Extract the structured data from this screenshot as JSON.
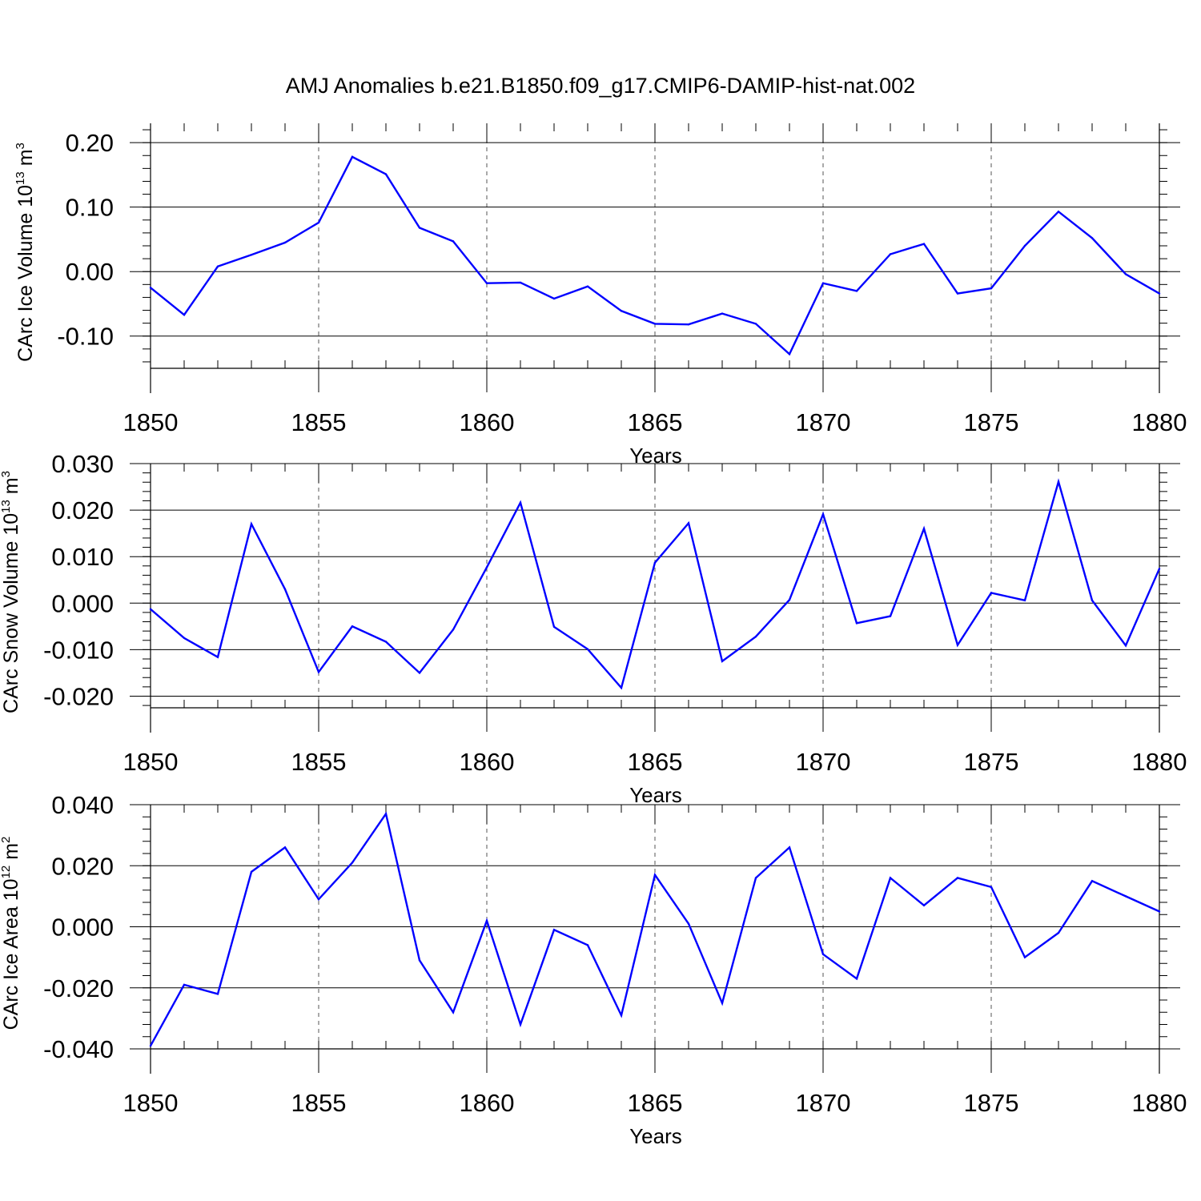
{
  "figure": {
    "title": "AMJ Anomalies b.e21.B1850.f09_g17.CMIP6-DAMIP-hist-nat.002",
    "line_color": "#0000ff"
  },
  "chart_data": [
    {
      "type": "line",
      "ylabel_main": "CArc Ice Volume 10",
      "ylabel_exp": "13",
      "ylabel_unit": " m",
      "ylabel_unit_exp": "3",
      "xlabel": "Years",
      "xlim": [
        1850,
        1880
      ],
      "ylim": [
        -0.15,
        0.23
      ],
      "y_ticks": [
        -0.1,
        0.0,
        0.1,
        0.2
      ],
      "y_tick_labels": [
        "-0.10",
        "0.00",
        "0.10",
        "0.20"
      ],
      "y_minor_step": 0.02,
      "x_ticks": [
        1850,
        1855,
        1860,
        1865,
        1870,
        1875,
        1880
      ],
      "x_tick_labels": [
        "1850",
        "1855",
        "1860",
        "1865",
        "1870",
        "1875",
        "1880"
      ],
      "grid": "vertical dashed at major x ticks",
      "x": [
        1850,
        1851,
        1852,
        1853,
        1854,
        1855,
        1856,
        1857,
        1858,
        1859,
        1860,
        1861,
        1862,
        1863,
        1864,
        1865,
        1866,
        1867,
        1868,
        1869,
        1870,
        1871,
        1872,
        1873,
        1874,
        1875,
        1876,
        1877,
        1878,
        1879,
        1880
      ],
      "series": [
        {
          "values": [
            -0.025,
            -0.067,
            0.008,
            0.026,
            0.045,
            0.076,
            0.178,
            0.151,
            0.068,
            0.047,
            -0.018,
            -0.017,
            -0.042,
            -0.023,
            -0.061,
            -0.081,
            -0.082,
            -0.065,
            -0.081,
            -0.128,
            -0.018,
            -0.03,
            0.027,
            0.043,
            -0.034,
            -0.026,
            0.04,
            0.093,
            0.052,
            -0.004,
            -0.034
          ]
        }
      ]
    },
    {
      "type": "line",
      "ylabel_main": "CArc Snow Volume 10",
      "ylabel_exp": "13",
      "ylabel_unit": " m",
      "ylabel_unit_exp": "3",
      "xlabel": "Years",
      "xlim": [
        1850,
        1880
      ],
      "ylim": [
        -0.0225,
        0.03
      ],
      "y_ticks": [
        -0.02,
        -0.01,
        0.0,
        0.01,
        0.02,
        0.03
      ],
      "y_tick_labels": [
        "-0.020",
        "-0.010",
        "0.000",
        "0.010",
        "0.020",
        "0.030"
      ],
      "y_minor_step": 0.002,
      "x_ticks": [
        1850,
        1855,
        1860,
        1865,
        1870,
        1875,
        1880
      ],
      "x_tick_labels": [
        "1850",
        "1855",
        "1860",
        "1865",
        "1870",
        "1875",
        "1880"
      ],
      "grid": "vertical dashed at major x ticks",
      "x": [
        1850,
        1851,
        1852,
        1853,
        1854,
        1855,
        1856,
        1857,
        1858,
        1859,
        1860,
        1861,
        1862,
        1863,
        1864,
        1865,
        1866,
        1867,
        1868,
        1869,
        1870,
        1871,
        1872,
        1873,
        1874,
        1875,
        1876,
        1877,
        1878,
        1879,
        1880
      ],
      "series": [
        {
          "values": [
            -0.0013,
            -0.0075,
            -0.0116,
            0.017,
            0.003,
            -0.0148,
            -0.005,
            -0.0083,
            -0.015,
            -0.0057,
            0.0077,
            0.0216,
            -0.0051,
            -0.0099,
            -0.0182,
            0.0087,
            0.0172,
            -0.0125,
            -0.0072,
            0.0007,
            0.0191,
            -0.0043,
            -0.0028,
            0.016,
            -0.009,
            0.0022,
            0.0006,
            0.0261,
            0.0006,
            -0.0091,
            0.0074
          ]
        }
      ]
    },
    {
      "type": "line",
      "ylabel_main": "CArc Ice Area 10",
      "ylabel_exp": "12",
      "ylabel_unit": " m",
      "ylabel_unit_exp": "2",
      "xlabel": "Years",
      "xlim": [
        1850,
        1880
      ],
      "ylim": [
        -0.04,
        0.04
      ],
      "y_ticks": [
        -0.04,
        -0.02,
        0.0,
        0.02,
        0.04
      ],
      "y_tick_labels": [
        "-0.040",
        "-0.020",
        "0.000",
        "0.020",
        "0.040"
      ],
      "y_minor_step": 0.004,
      "x_ticks": [
        1850,
        1855,
        1860,
        1865,
        1870,
        1875,
        1880
      ],
      "x_tick_labels": [
        "1850",
        "1855",
        "1860",
        "1865",
        "1870",
        "1875",
        "1880"
      ],
      "grid": "vertical dashed at major x ticks",
      "x": [
        1850,
        1851,
        1852,
        1853,
        1854,
        1855,
        1856,
        1857,
        1858,
        1859,
        1860,
        1861,
        1862,
        1863,
        1864,
        1865,
        1866,
        1867,
        1868,
        1869,
        1870,
        1871,
        1872,
        1873,
        1874,
        1875,
        1876,
        1877,
        1878,
        1879,
        1880
      ],
      "series": [
        {
          "values": [
            -0.039,
            -0.019,
            -0.022,
            0.018,
            0.026,
            0.009,
            0.021,
            0.037,
            -0.011,
            -0.028,
            0.002,
            -0.032,
            -0.001,
            -0.006,
            -0.029,
            0.017,
            0.001,
            -0.025,
            0.016,
            0.026,
            -0.009,
            -0.017,
            0.016,
            0.007,
            0.016,
            0.013,
            -0.01,
            -0.002,
            0.015,
            0.01,
            0.005
          ]
        }
      ]
    }
  ]
}
